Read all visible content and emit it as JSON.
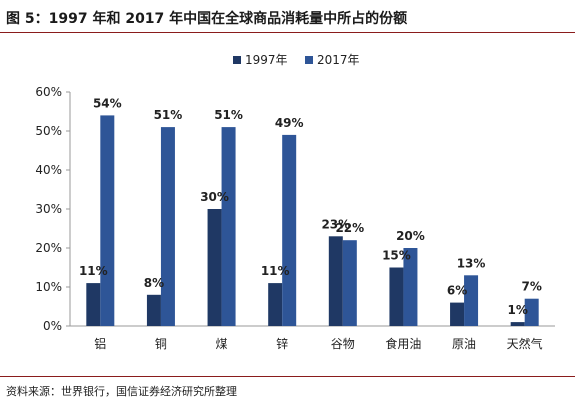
{
  "page": {
    "title": "图 5：1997 年和 2017 年中国在全球商品消耗量中所占的份额",
    "source": "资料来源：世界银行，国信证券经济研究所整理"
  },
  "chart_data": {
    "type": "bar",
    "categories": [
      "铝",
      "铜",
      "煤",
      "锌",
      "谷物",
      "食用油",
      "原油",
      "天然气"
    ],
    "series": [
      {
        "name": "1997年",
        "values": [
          11,
          8,
          30,
          11,
          23,
          15,
          6,
          1
        ],
        "labels": [
          "11%",
          "8%",
          "30%",
          "11%",
          "23%",
          "15%",
          "6%",
          "1%"
        ],
        "color": "#1f3864"
      },
      {
        "name": "2017年",
        "values": [
          54,
          51,
          51,
          49,
          22,
          20,
          13,
          7
        ],
        "labels": [
          "54%",
          "51%",
          "51%",
          "49%",
          "22%",
          "20%",
          "13%",
          "7%"
        ],
        "color": "#2e5597"
      }
    ],
    "yticks": [
      "0%",
      "10%",
      "20%",
      "30%",
      "40%",
      "50%",
      "60%"
    ],
    "ylim": [
      0,
      60
    ],
    "legend_position": "top-center",
    "grid": false
  }
}
